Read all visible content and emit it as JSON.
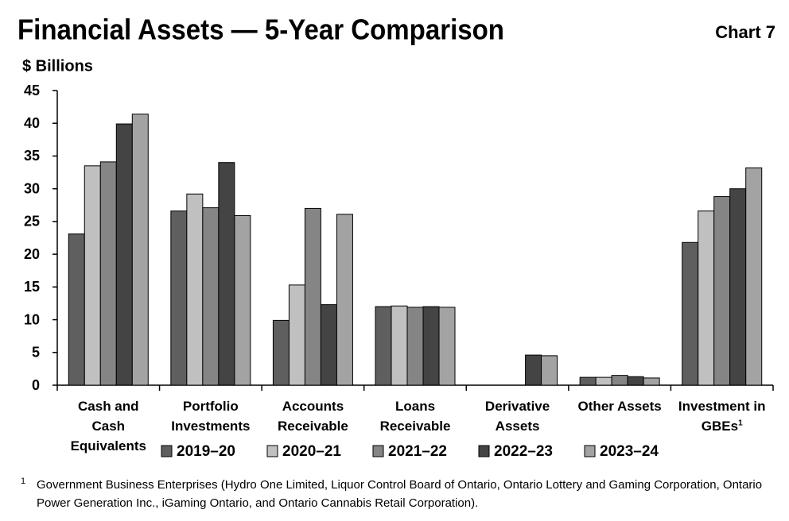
{
  "chart_data": {
    "type": "bar",
    "title": "Financial Assets — 5-Year Comparison",
    "chart_label": "Chart 7",
    "y_label": "$ Billions",
    "categories": [
      "Cash and Cash Equivalents",
      "Portfolio Investments",
      "Accounts Receivable",
      "Loans Receivable",
      "Derivative Assets",
      "Other Assets",
      "Investment in GBEs"
    ],
    "category_footnote_marks": [
      null,
      null,
      null,
      null,
      null,
      null,
      "1"
    ],
    "series": [
      {
        "name": "2019–20",
        "color": "#5f5f5f",
        "values": [
          23.1,
          26.6,
          9.9,
          12.0,
          null,
          1.2,
          21.8
        ]
      },
      {
        "name": "2020–21",
        "color": "#c0c0c0",
        "values": [
          33.5,
          29.2,
          15.3,
          12.1,
          null,
          1.2,
          26.6
        ]
      },
      {
        "name": "2021–22",
        "color": "#858585",
        "values": [
          34.1,
          27.1,
          27.0,
          11.9,
          null,
          1.5,
          28.8
        ]
      },
      {
        "name": "2022–23",
        "color": "#444444",
        "values": [
          39.9,
          34.0,
          12.3,
          12.0,
          4.6,
          1.3,
          30.0
        ]
      },
      {
        "name": "2023–24",
        "color": "#a3a3a3",
        "values": [
          41.4,
          25.9,
          26.1,
          11.9,
          4.5,
          1.1,
          33.2
        ]
      }
    ],
    "ylim": [
      0,
      45
    ],
    "yticks": [
      0,
      5,
      10,
      15,
      20,
      25,
      30,
      35,
      40,
      45
    ],
    "legend": "bottom",
    "footnote": {
      "marker": "1",
      "text": "Government Business Enterprises (Hydro One Limited, Liquor Control Board of Ontario, Ontario Lottery and Gaming Corporation, Ontario Power Generation Inc., iGaming Ontario, and Ontario Cannabis Retail Corporation)."
    }
  }
}
